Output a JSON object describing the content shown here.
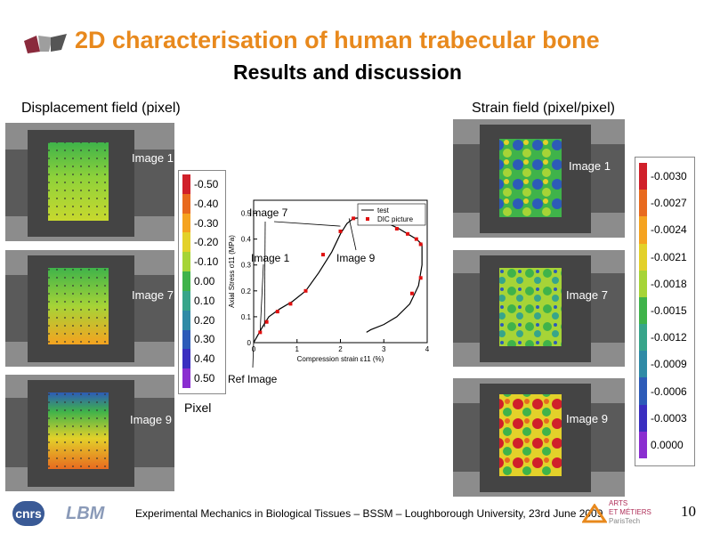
{
  "slide": {
    "title": "2D characterisation of human trabecular bone",
    "subtitle": "Results and discussion",
    "page_number": "10"
  },
  "left": {
    "heading": "Displacement field (pixel)",
    "images": [
      "Image 1",
      "Image 7",
      "Image 9"
    ],
    "colorbar": {
      "ticks": [
        "-0.50",
        "-0.40",
        "-0.30",
        "-0.20",
        "-0.10",
        "0.00",
        "0.10",
        "0.20",
        "0.30",
        "0.40",
        "0.50"
      ],
      "colors": [
        "#d0202a",
        "#e86a1f",
        "#f5a320",
        "#e3d12a",
        "#a6d437",
        "#3fb34a",
        "#37a58a",
        "#2f8aa6",
        "#2d5bb8",
        "#3a2ec0",
        "#8a2ed0"
      ],
      "unit": "Pixel"
    }
  },
  "right": {
    "heading": "Strain field (pixel/pixel)",
    "images": [
      "Image 1",
      "Image 7",
      "Image 9"
    ],
    "colorbar": {
      "ticks": [
        "-0.0030",
        "-0.0027",
        "-0.0024",
        "-0.0021",
        "-0.0018",
        "-0.0015",
        "-0.0012",
        "-0.0009",
        "-0.0006",
        "-0.0003",
        "0.0000"
      ],
      "colors": [
        "#d0202a",
        "#e86a1f",
        "#f5a320",
        "#e3d12a",
        "#a6d437",
        "#3fb34a",
        "#37a58a",
        "#2f8aa6",
        "#2d5bb8",
        "#3a2ec0",
        "#8a2ed0"
      ]
    }
  },
  "chart_data": {
    "type": "line",
    "xlabel": "Compression strain ε11 (%)",
    "ylabel": "Axial Stress σ11 (MPa)",
    "xlim": [
      0,
      4
    ],
    "ylim": [
      0,
      0.55
    ],
    "xticks": [
      "0",
      "1",
      "2",
      "3",
      "4"
    ],
    "yticks": [
      "0",
      "0.1",
      "0.2",
      "0.3",
      "0.4",
      "0.5"
    ],
    "legend": [
      "test",
      "DIC picture"
    ],
    "series": [
      {
        "name": "test",
        "x": [
          0,
          0.1,
          0.2,
          0.35,
          0.6,
          0.9,
          1.2,
          1.5,
          1.8,
          2.0,
          2.15,
          2.3,
          2.5,
          2.8,
          3.1,
          3.35,
          3.55,
          3.75,
          3.88,
          3.88,
          3.8,
          3.6,
          3.3,
          3.0,
          2.7,
          2.6
        ],
        "y": [
          0,
          0.03,
          0.06,
          0.1,
          0.13,
          0.16,
          0.2,
          0.27,
          0.35,
          0.42,
          0.46,
          0.48,
          0.483,
          0.48,
          0.46,
          0.44,
          0.42,
          0.4,
          0.38,
          0.3,
          0.22,
          0.15,
          0.1,
          0.07,
          0.05,
          0.04
        ]
      },
      {
        "name": "DIC picture",
        "x": [
          0.15,
          0.3,
          0.55,
          0.85,
          1.2,
          1.6,
          2.0,
          2.3,
          2.55,
          2.8,
          3.05,
          3.3,
          3.55,
          3.75,
          3.85,
          3.85,
          3.65
        ],
        "y": [
          0.04,
          0.08,
          0.12,
          0.15,
          0.2,
          0.34,
          0.43,
          0.48,
          0.483,
          0.475,
          0.465,
          0.44,
          0.42,
          0.4,
          0.38,
          0.25,
          0.19
        ]
      }
    ],
    "annotations": [
      "Image 7",
      "Image 1",
      "Image 9",
      "Ref Image"
    ]
  },
  "footer": {
    "text": "Experimental Mechanics in Biological Tissues – BSSM – Loughborough University, 23rd June 2009",
    "logo_cnrs": "cnrs",
    "logo_lbm": "LBM",
    "logo_am1": "ARTS",
    "logo_am2": "ET MÉTIERS",
    "logo_am3": "ParisTech"
  }
}
